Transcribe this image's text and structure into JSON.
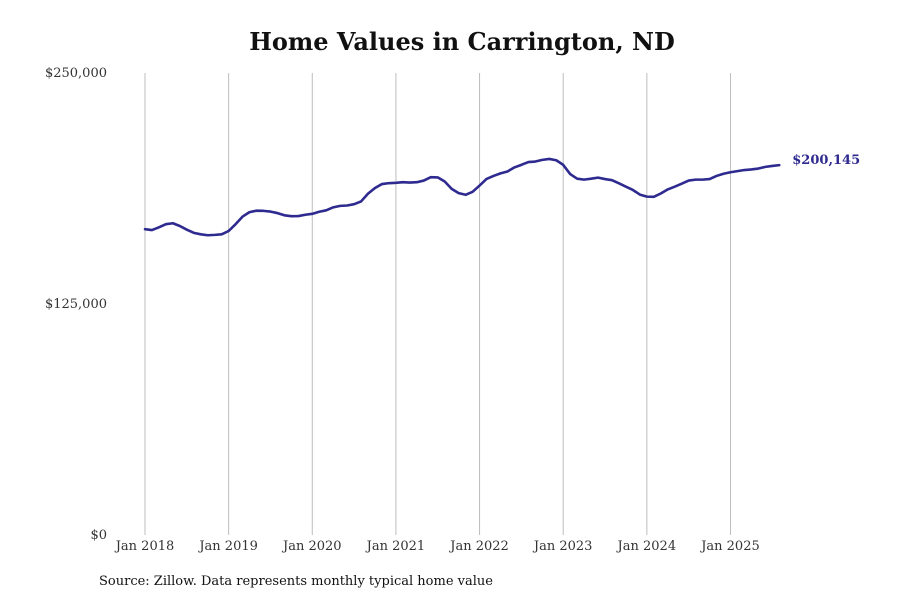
{
  "chart_data": {
    "type": "line",
    "title": "Home Values in Carrington, ND",
    "xlabel": "",
    "ylabel": "",
    "ylim": [
      0,
      250000
    ],
    "y_ticks": [
      {
        "value": 0,
        "label": "$0"
      },
      {
        "value": 125000,
        "label": "$125,000"
      },
      {
        "value": 250000,
        "label": "$250,000"
      }
    ],
    "x_start": "2018-01",
    "x_ticks": [
      {
        "month_index": 0,
        "label": "Jan 2018"
      },
      {
        "month_index": 12,
        "label": "Jan 2019"
      },
      {
        "month_index": 24,
        "label": "Jan 2020"
      },
      {
        "month_index": 36,
        "label": "Jan 2021"
      },
      {
        "month_index": 48,
        "label": "Jan 2022"
      },
      {
        "month_index": 60,
        "label": "Jan 2023"
      },
      {
        "month_index": 72,
        "label": "Jan 2024"
      },
      {
        "month_index": 84,
        "label": "Jan 2025"
      }
    ],
    "grid": "vertical",
    "line_color": "#2e2a8f",
    "series": [
      {
        "name": "",
        "values": [
          165500,
          165000,
          166500,
          168200,
          168700,
          167200,
          165200,
          163500,
          162700,
          162200,
          162400,
          162700,
          164500,
          168200,
          172300,
          174700,
          175500,
          175400,
          175000,
          174200,
          173000,
          172500,
          172600,
          173300,
          173800,
          174900,
          175700,
          177300,
          178100,
          178300,
          179000,
          180500,
          184700,
          187800,
          189900,
          190400,
          190600,
          190900,
          190700,
          190900,
          191800,
          193600,
          193500,
          191300,
          187300,
          185000,
          184100,
          185700,
          189100,
          192700,
          194300,
          195700,
          196700,
          198900,
          200300,
          201800,
          202100,
          203000,
          203500,
          202800,
          200300,
          195300,
          192800,
          192300,
          192800,
          193400,
          192600,
          192000,
          190300,
          188500,
          186700,
          184200,
          183100,
          183000,
          184800,
          187000,
          188500,
          190100,
          191800,
          192300,
          192300,
          192600,
          194300,
          195500,
          196300,
          196900,
          197500,
          197800,
          198300,
          199200,
          199700,
          200145
        ]
      }
    ],
    "end_label": "$200,145"
  },
  "source_note": "Source: Zillow. Data represents monthly typical home value"
}
